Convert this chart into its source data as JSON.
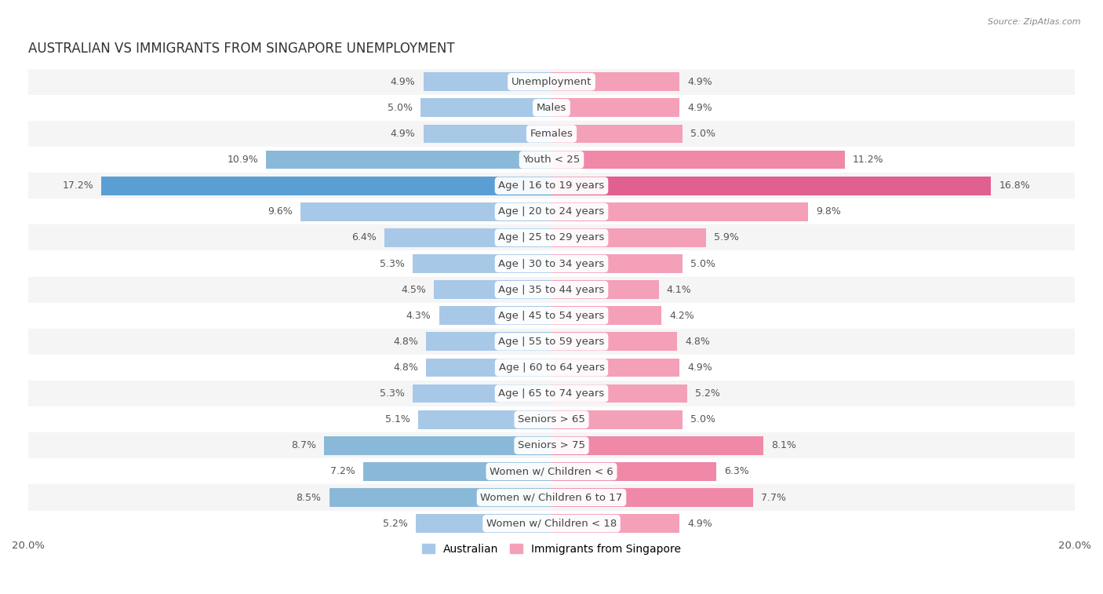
{
  "title": "Australian vs Immigrants from Singapore Unemployment",
  "source": "Source: ZipAtlas.com",
  "categories": [
    "Unemployment",
    "Males",
    "Females",
    "Youth < 25",
    "Age | 16 to 19 years",
    "Age | 20 to 24 years",
    "Age | 25 to 29 years",
    "Age | 30 to 34 years",
    "Age | 35 to 44 years",
    "Age | 45 to 54 years",
    "Age | 55 to 59 years",
    "Age | 60 to 64 years",
    "Age | 65 to 74 years",
    "Seniors > 65",
    "Seniors > 75",
    "Women w/ Children < 6",
    "Women w/ Children 6 to 17",
    "Women w/ Children < 18"
  ],
  "australian": [
    4.9,
    5.0,
    4.9,
    10.9,
    17.2,
    9.6,
    6.4,
    5.3,
    4.5,
    4.3,
    4.8,
    4.8,
    5.3,
    5.1,
    8.7,
    7.2,
    8.5,
    5.2
  ],
  "singapore": [
    4.9,
    4.9,
    5.0,
    11.2,
    16.8,
    9.8,
    5.9,
    5.0,
    4.1,
    4.2,
    4.8,
    4.9,
    5.2,
    5.0,
    8.1,
    6.3,
    7.7,
    4.9
  ],
  "australian_color": "#a8c8e8",
  "singapore_color": "#f4a0b8",
  "highlight_australian_color": "#5a9fd4",
  "highlight_singapore_color": "#e06090",
  "row_colors": [
    "#f5f5f5",
    "#ffffff"
  ],
  "max_val": 20.0,
  "label_fontsize": 9.5,
  "title_fontsize": 12,
  "legend_fontsize": 10,
  "value_fontsize": 9
}
